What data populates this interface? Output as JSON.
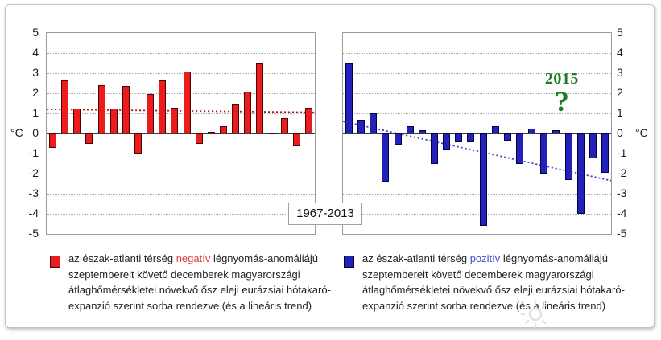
{
  "axes": {
    "unit": "°C",
    "ticks": [
      "5",
      "4",
      "3",
      "2",
      "1",
      "0",
      "-1",
      "-2",
      "-3",
      "-4",
      "-5"
    ]
  },
  "period_box": {
    "label": "1967-2013"
  },
  "chart_data": [
    {
      "type": "bar",
      "title": "",
      "xlabel": "",
      "ylabel": "°C",
      "ylim": [
        -5,
        5
      ],
      "grid": true,
      "legend_position": "bottom",
      "values": [
        -0.7,
        2.65,
        1.25,
        -0.5,
        2.4,
        1.25,
        2.35,
        -1.0,
        1.95,
        2.65,
        1.3,
        3.1,
        -0.5,
        0.1,
        0.35,
        1.45,
        2.1,
        3.5,
        0.05,
        0.75,
        -0.65,
        1.3
      ],
      "bar_color": "#ed1c1c",
      "bar_border": "#4d0000",
      "trend": {
        "start": 1.2,
        "end": 1.05,
        "color": "#b22222",
        "style": "dotted"
      },
      "legend": {
        "marker_color": "#ed1c1c",
        "text_before": "az észak-atlanti térség ",
        "highlight": "negatív",
        "highlight_color": "#e03c3c",
        "text_after": " légnyomás-anomáliájú szeptembereit követő decemberek magyarországi átlaghőmérsékletei növekvő ősz eleji eurázsiai hótakaró-expanzió szerint sorba rendezve (és a lineáris trend)"
      }
    },
    {
      "type": "bar",
      "title": "",
      "xlabel": "",
      "ylabel": "°C",
      "ylim": [
        -5,
        5
      ],
      "grid": true,
      "legend_position": "bottom",
      "values": [
        3.5,
        0.7,
        1.0,
        -2.4,
        -0.55,
        0.35,
        0.15,
        -1.5,
        -0.8,
        -0.45,
        -0.45,
        -4.6,
        0.35,
        -0.35,
        -1.5,
        0.25,
        -2.0,
        0.15,
        -2.3,
        -4.0,
        -1.25,
        -1.95
      ],
      "bar_color": "#2222b8",
      "bar_border": "#00004a",
      "trend": {
        "start": 0.6,
        "end": -2.35,
        "color": "#4444cc",
        "style": "dotted"
      },
      "annotation": {
        "year": "2015",
        "mark": "?",
        "color": "#1e7d1f",
        "over_bar_index": 17
      },
      "legend": {
        "marker_color": "#2222b8",
        "text_before": "az észak-atlanti térség ",
        "highlight": "pozitív",
        "highlight_color": "#3d4fc4",
        "text_after": " légnyomás-anomáliájú szeptembereit követő decemberek magyarországi átlaghőmérsékletei növekvő ősz eleji eurázsiai hótakaró-expanzió szerint sorba rendezve (és a lineáris trend)"
      }
    }
  ]
}
